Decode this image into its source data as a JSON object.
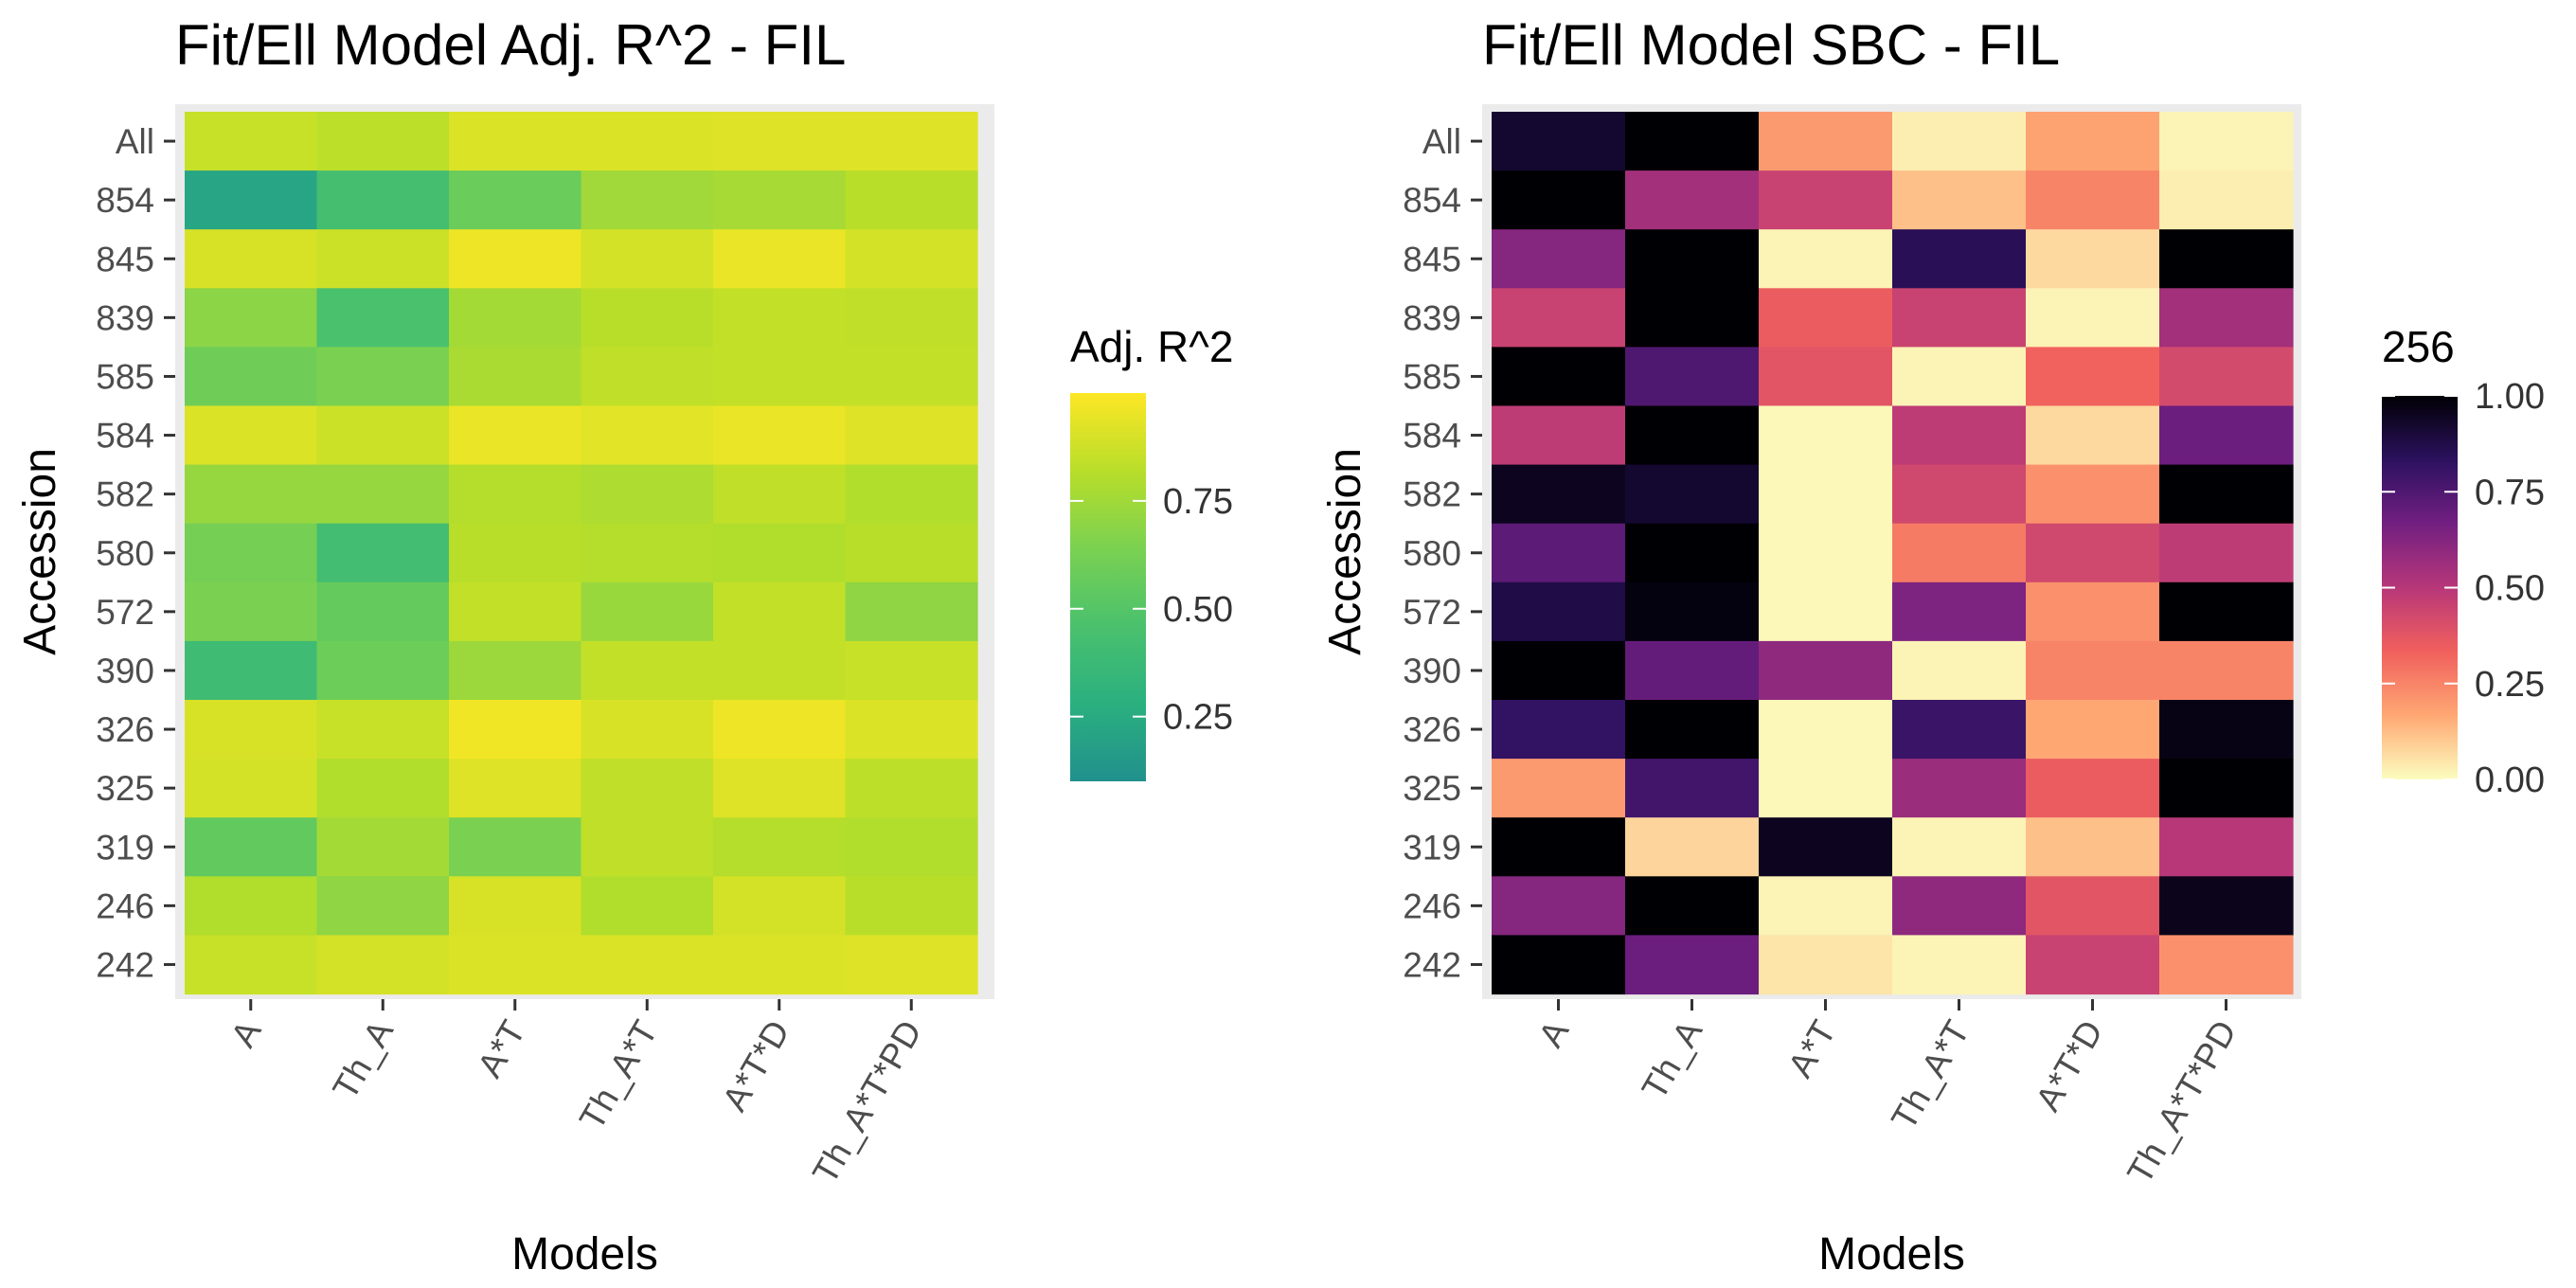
{
  "chart_data": [
    {
      "type": "heatmap",
      "title": "Fit/Ell Model Adj. R^2 - FIL",
      "xlabel": "Models",
      "ylabel": "Accession",
      "x_categories": [
        "A",
        "Th_A",
        "A*T",
        "Th_A*T",
        "A*T*D",
        "Th_A*T*PD"
      ],
      "y_categories": [
        "All",
        "854",
        "845",
        "839",
        "585",
        "584",
        "582",
        "580",
        "572",
        "390",
        "326",
        "325",
        "319",
        "246",
        "242"
      ],
      "values": [
        [
          0.86,
          0.83,
          0.91,
          0.91,
          0.92,
          0.92
        ],
        [
          0.22,
          0.43,
          0.58,
          0.75,
          0.77,
          0.82
        ],
        [
          0.9,
          0.87,
          0.96,
          0.89,
          0.95,
          0.89
        ],
        [
          0.69,
          0.46,
          0.76,
          0.82,
          0.85,
          0.84
        ],
        [
          0.6,
          0.64,
          0.78,
          0.84,
          0.85,
          0.85
        ],
        [
          0.91,
          0.87,
          0.95,
          0.93,
          0.95,
          0.92
        ],
        [
          0.72,
          0.72,
          0.81,
          0.79,
          0.84,
          0.8
        ],
        [
          0.62,
          0.42,
          0.82,
          0.81,
          0.8,
          0.82
        ],
        [
          0.64,
          0.56,
          0.85,
          0.73,
          0.85,
          0.7
        ],
        [
          0.4,
          0.59,
          0.74,
          0.85,
          0.85,
          0.86
        ],
        [
          0.9,
          0.86,
          0.97,
          0.9,
          0.96,
          0.91
        ],
        [
          0.89,
          0.8,
          0.92,
          0.84,
          0.92,
          0.83
        ],
        [
          0.55,
          0.76,
          0.64,
          0.84,
          0.81,
          0.8
        ],
        [
          0.8,
          0.7,
          0.9,
          0.8,
          0.89,
          0.82
        ],
        [
          0.86,
          0.89,
          0.91,
          0.91,
          0.91,
          0.92
        ]
      ],
      "color_scale": "viridis-partial",
      "color_stops": [
        "#21908d",
        "#2ab07f",
        "#4ac16d",
        "#7ad151",
        "#b8de29",
        "#fde725"
      ],
      "scale_range": [
        0.1,
        1.0
      ],
      "legend": {
        "title": "Adj. R^2",
        "ticks": [
          0.25,
          0.5,
          0.75
        ],
        "tick_labels": [
          "0.25",
          "0.50",
          "0.75"
        ],
        "position": "right"
      }
    },
    {
      "type": "heatmap",
      "title": "Fit/Ell Model SBC - FIL",
      "xlabel": "Models",
      "ylabel": "Accession",
      "x_categories": [
        "A",
        "Th_A",
        "A*T",
        "Th_A*T",
        "A*T*D",
        "Th_A*T*PD"
      ],
      "y_categories": [
        "All",
        "854",
        "845",
        "839",
        "585",
        "584",
        "582",
        "580",
        "572",
        "390",
        "326",
        "325",
        "319",
        "246",
        "242"
      ],
      "values": [
        [
          0.92,
          1.0,
          0.2,
          0.03,
          0.18,
          0.02
        ],
        [
          1.0,
          0.55,
          0.45,
          0.12,
          0.25,
          0.03
        ],
        [
          0.62,
          1.0,
          0.02,
          0.85,
          0.07,
          1.0
        ],
        [
          0.45,
          1.0,
          0.35,
          0.45,
          0.02,
          0.55
        ],
        [
          1.0,
          0.75,
          0.38,
          0.02,
          0.33,
          0.42
        ],
        [
          0.48,
          1.0,
          0.01,
          0.48,
          0.07,
          0.68
        ],
        [
          0.95,
          0.92,
          0.01,
          0.43,
          0.22,
          1.0
        ],
        [
          0.72,
          1.0,
          0.01,
          0.27,
          0.43,
          0.48
        ],
        [
          0.88,
          0.98,
          0.01,
          0.64,
          0.22,
          1.0
        ],
        [
          1.0,
          0.7,
          0.6,
          0.02,
          0.25,
          0.25
        ],
        [
          0.82,
          1.0,
          0.01,
          0.8,
          0.17,
          0.97
        ],
        [
          0.2,
          0.78,
          0.01,
          0.57,
          0.35,
          1.0
        ],
        [
          1.0,
          0.08,
          0.95,
          0.02,
          0.12,
          0.5
        ],
        [
          0.62,
          1.0,
          0.02,
          0.6,
          0.38,
          0.96
        ],
        [
          1.0,
          0.68,
          0.05,
          0.02,
          0.45,
          0.22
        ]
      ],
      "color_scale": "magma-reversed",
      "color_stops": [
        "#fcfdbf",
        "#fea873",
        "#f1605d",
        "#b73779",
        "#721f81",
        "#2c115f",
        "#000004"
      ],
      "scale_range": [
        0,
        1
      ],
      "legend": {
        "title": "256",
        "ticks": [
          0,
          0.25,
          0.5,
          0.75,
          1
        ],
        "tick_labels": [
          "0.00",
          "0.25",
          "0.50",
          "0.75",
          "1.00"
        ],
        "position": "right"
      }
    }
  ]
}
